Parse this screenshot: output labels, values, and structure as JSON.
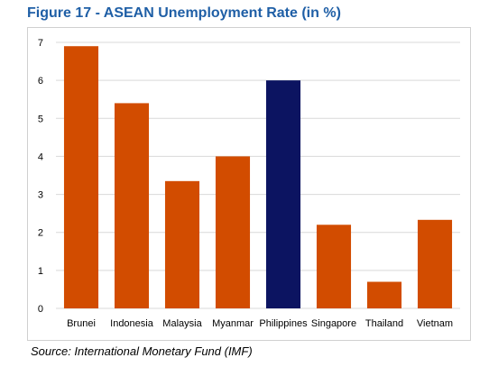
{
  "chart_data": {
    "type": "bar",
    "title": "Figure 17 - ASEAN Unemployment Rate (in %)",
    "xlabel": "",
    "ylabel": "",
    "categories": [
      "Brunei",
      "Indonesia",
      "Malaysia",
      "Myanmar",
      "Philippines",
      "Singapore",
      "Thailand",
      "Vietnam"
    ],
    "values": [
      6.9,
      5.4,
      3.35,
      4.0,
      6.0,
      2.2,
      0.7,
      2.33
    ],
    "highlight_category": "Philippines",
    "ylim": [
      0,
      7
    ],
    "yticks": [
      "0",
      "1",
      "2",
      "3",
      "4",
      "5",
      "6",
      "7"
    ],
    "grid": true,
    "legend": "none"
  },
  "source": "Source: International Monetary Fund (IMF)",
  "colors": {
    "bar": "#d24c00",
    "highlight_bar": "#0c1461",
    "title": "#1f5fa6",
    "grid": "#d9d9d9"
  }
}
